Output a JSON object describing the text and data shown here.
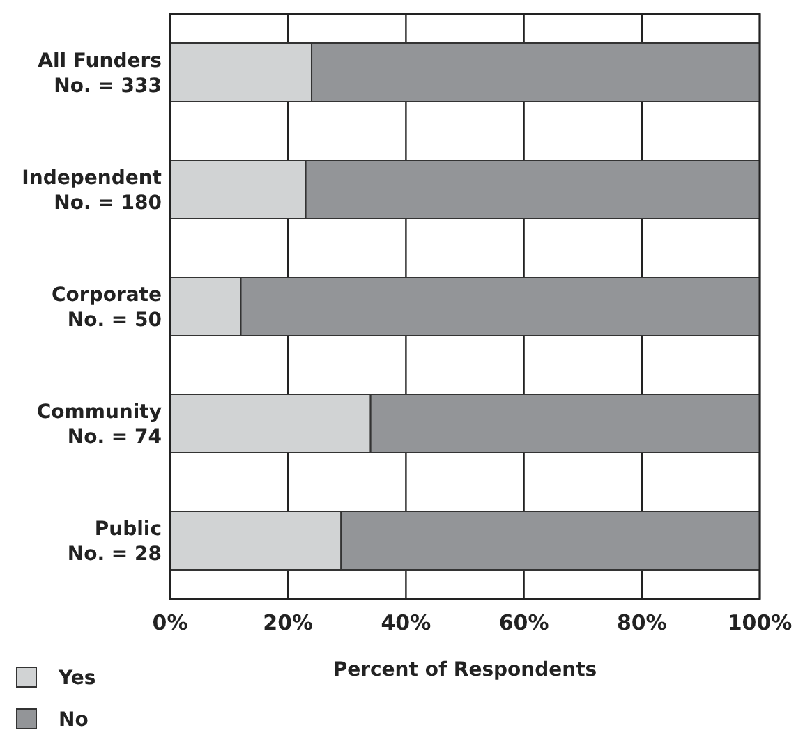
{
  "chart_data": {
    "type": "bar",
    "orientation": "horizontal",
    "stacked": true,
    "xlabel": "Percent of Respondents",
    "categories": [
      "All Funders\nNo. = 333",
      "Independent\nNo. = 180",
      "Corporate\nNo. = 50",
      "Community\nNo. = 74",
      "Public\nNo. = 28"
    ],
    "series": [
      {
        "name": "Yes",
        "color": "#d1d3d4",
        "values": [
          24,
          23,
          12,
          34,
          29
        ]
      },
      {
        "name": "No",
        "color": "#939598",
        "values": [
          76,
          77,
          88,
          66,
          71
        ]
      }
    ],
    "xlim": [
      0,
      100
    ],
    "xticks": [
      {
        "value": 0,
        "label": "0%"
      },
      {
        "value": 20,
        "label": "20%"
      },
      {
        "value": 40,
        "label": "40%"
      },
      {
        "value": 60,
        "label": "60%"
      },
      {
        "value": 80,
        "label": "80%"
      },
      {
        "value": 100,
        "label": "100%"
      }
    ],
    "grid": "x",
    "legend": "bottom left"
  }
}
